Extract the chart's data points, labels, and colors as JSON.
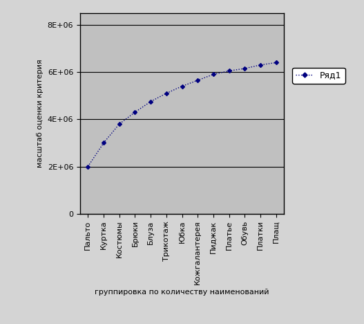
{
  "categories": [
    "Пальто",
    "Куртка",
    "Костюмы",
    "Брюки",
    "Блуза",
    "Трикотаж",
    "Юбка",
    "Кожгалантерея",
    "Пиджак",
    "Платье",
    "Обувь",
    "Платки",
    "Плащ"
  ],
  "values": [
    2000000,
    3000000,
    3800000,
    4300000,
    4750000,
    5100000,
    5400000,
    5650000,
    5900000,
    6050000,
    6150000,
    6300000,
    6400000
  ],
  "line_color": "#000080",
  "marker": "D",
  "marker_size": 3,
  "marker_facecolor": "#000080",
  "ylabel": "масштаб оценки критерия",
  "xlabel": "группировка по количеству наименований",
  "legend_label": "Ряд1",
  "ylim": [
    0,
    8500000
  ],
  "yticks": [
    0,
    2000000,
    4000000,
    6000000,
    8000000
  ],
  "ytick_labels": [
    "0",
    "2E+06",
    "4E+06",
    "6E+06",
    "8E+06"
  ],
  "plot_bg_color": "#c0c0c0",
  "fig_bg_color": "#ffffff",
  "outer_bg_color": "#d4d4d4",
  "grid_color": "#000000",
  "border_color": "#000000",
  "axis_label_fontsize": 8,
  "tick_fontsize": 8,
  "legend_fontsize": 9,
  "linestyle": ":"
}
